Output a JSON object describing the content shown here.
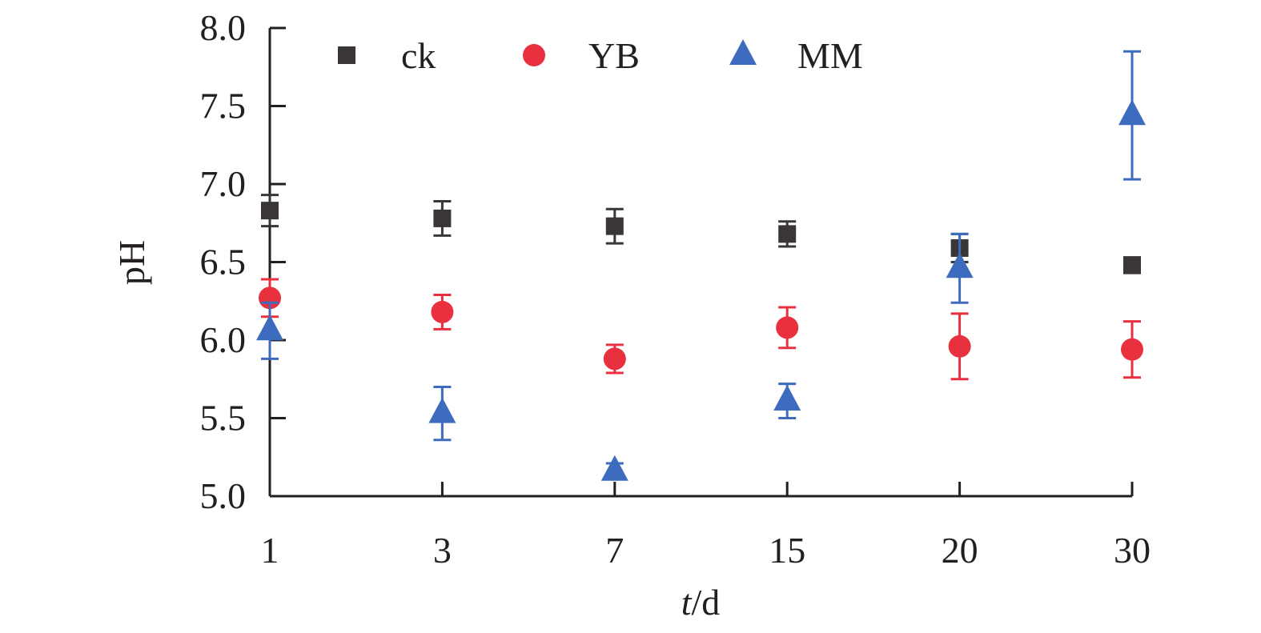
{
  "chart_data": {
    "type": "scatter",
    "title": "",
    "xlabel_italic": "t",
    "xlabel_rest": "/d",
    "ylabel": "pH",
    "categories": [
      "1",
      "3",
      "7",
      "15",
      "20",
      "30"
    ],
    "yticks": [
      "5.0",
      "5.5",
      "6.0",
      "6.5",
      "7.0",
      "7.5",
      "8.0"
    ],
    "ylim": [
      5.0,
      8.0
    ],
    "grid": false,
    "legend_position": "top",
    "series": [
      {
        "name": "ck",
        "marker": "square",
        "color": "#3a3536",
        "values": [
          6.83,
          6.78,
          6.73,
          6.68,
          6.59,
          6.48
        ],
        "errors": [
          0.1,
          0.11,
          0.11,
          0.08,
          0.09,
          0.05
        ]
      },
      {
        "name": "YB",
        "marker": "circle",
        "color": "#e8303f",
        "values": [
          6.27,
          6.18,
          5.88,
          6.08,
          5.96,
          5.94
        ],
        "errors": [
          0.12,
          0.11,
          0.09,
          0.13,
          0.21,
          0.18
        ]
      },
      {
        "name": "MM",
        "marker": "triangle",
        "color": "#3d6cbf",
        "values": [
          6.06,
          5.53,
          5.16,
          5.61,
          6.46,
          7.44
        ],
        "errors": [
          0.18,
          0.17,
          0.05,
          0.11,
          0.22,
          0.41
        ]
      }
    ]
  }
}
